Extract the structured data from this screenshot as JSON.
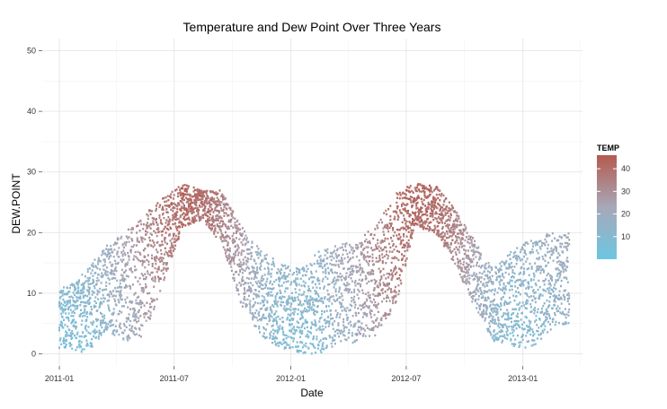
{
  "chart_data": {
    "type": "scatter",
    "title": "Temperature and Dew Point Over Three Years",
    "xlabel": "Date",
    "ylabel": "DEW.POINT",
    "x_ticks": [
      "2011-01",
      "2011-07",
      "2012-01",
      "2012-07",
      "2013-01"
    ],
    "x_range": [
      "2010-12-05",
      "2013-04-05"
    ],
    "y_ticks": [
      0,
      10,
      20,
      30,
      40,
      50
    ],
    "ylim": [
      -2,
      52
    ],
    "grid": true,
    "color_encoding": "TEMP",
    "legend": {
      "title": "TEMP",
      "ticks": [
        10,
        20,
        30,
        40
      ],
      "range": [
        0,
        46
      ],
      "low_color": "#6dc6e2",
      "mid_color": "#a7a8b9",
      "high_color": "#b45a4f",
      "placement": "right"
    },
    "series": [
      {
        "x_start": "2011-01-01",
        "x_end": "2013-03-15",
        "points_per_month_sampled": true,
        "monthly_dew_point_band": [
          {
            "month": "2011-01",
            "low": 1,
            "high": 11,
            "temp": 8
          },
          {
            "month": "2011-02",
            "low": 0,
            "high": 14,
            "temp": 10
          },
          {
            "month": "2011-03",
            "low": 4,
            "high": 18,
            "temp": 16
          },
          {
            "month": "2011-04",
            "low": 2,
            "high": 20,
            "temp": 22
          },
          {
            "month": "2011-05",
            "low": 3,
            "high": 23,
            "temp": 28
          },
          {
            "month": "2011-06",
            "low": 12,
            "high": 26,
            "temp": 36
          },
          {
            "month": "2011-07",
            "low": 21,
            "high": 28,
            "temp": 41
          },
          {
            "month": "2011-08",
            "low": 22,
            "high": 27,
            "temp": 40
          },
          {
            "month": "2011-09",
            "low": 18,
            "high": 27,
            "temp": 34
          },
          {
            "month": "2011-10",
            "low": 8,
            "high": 21,
            "temp": 25
          },
          {
            "month": "2011-11",
            "low": 3,
            "high": 17,
            "temp": 16
          },
          {
            "month": "2011-12",
            "low": 1,
            "high": 15,
            "temp": 11
          },
          {
            "month": "2012-01",
            "low": 0,
            "high": 14,
            "temp": 10
          },
          {
            "month": "2012-02",
            "low": 0,
            "high": 17,
            "temp": 12
          },
          {
            "month": "2012-03",
            "low": 1,
            "high": 18,
            "temp": 18
          },
          {
            "month": "2012-04",
            "low": 2,
            "high": 19,
            "temp": 23
          },
          {
            "month": "2012-05",
            "low": 3,
            "high": 21,
            "temp": 30
          },
          {
            "month": "2012-06",
            "low": 8,
            "high": 27,
            "temp": 38
          },
          {
            "month": "2012-07",
            "low": 21,
            "high": 28,
            "temp": 42
          },
          {
            "month": "2012-08",
            "low": 20,
            "high": 28,
            "temp": 40
          },
          {
            "month": "2012-09",
            "low": 15,
            "high": 24,
            "temp": 33
          },
          {
            "month": "2012-10",
            "low": 8,
            "high": 19,
            "temp": 24
          },
          {
            "month": "2012-11",
            "low": 2,
            "high": 14,
            "temp": 15
          },
          {
            "month": "2012-12",
            "low": 1,
            "high": 17,
            "temp": 11
          },
          {
            "month": "2013-01",
            "low": 1,
            "high": 19,
            "temp": 13
          },
          {
            "month": "2013-02",
            "low": 4,
            "high": 20,
            "temp": 16
          },
          {
            "month": "2013-03",
            "low": 5,
            "high": 20,
            "temp": 18
          }
        ]
      }
    ]
  }
}
